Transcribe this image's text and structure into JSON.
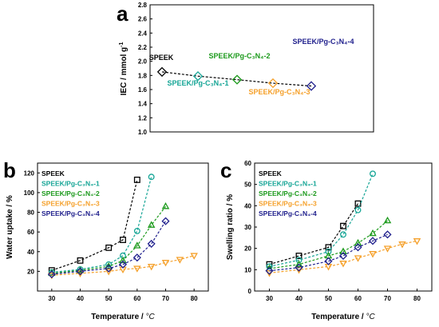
{
  "colors": {
    "s0": "#000000",
    "s1": "#16a596",
    "s2": "#1c9a1c",
    "s3": "#f5a02a",
    "s4": "#1e1e8c"
  },
  "chart_data": [
    {
      "type": "line",
      "panel_label": "a",
      "ylabel": "IEC / mmol g",
      "ylabel_sup": "-1",
      "ylim": [
        1.0,
        2.8
      ],
      "yticks": [
        "1.0",
        "1.2",
        "1.4",
        "1.6",
        "1.8",
        "2.0",
        "2.2",
        "2.4",
        "2.6",
        "2.8"
      ],
      "grid": false,
      "marker": "diamond",
      "categories": [
        "SPEEK",
        "SPEEK/Pg-C₃N₄-1",
        "SPEEK/Pg-C₃N₄-2",
        "SPEEK/Pg-C₃N₄-3",
        "SPEEK/Pg-C₃N₄-4"
      ],
      "values": [
        1.85,
        1.79,
        1.74,
        1.69,
        1.65
      ],
      "point_labels": [
        "SPEEK",
        "SPEEK/Pg-C₃N₄-1",
        "SPEEK/Pg-C₃N₄-2",
        "SPEEK/Pg-C₃N₄-3",
        "SPEEK/Pg-C₃N₄-4"
      ]
    },
    {
      "type": "line",
      "panel_label": "b",
      "xlabel": "Temperature / ",
      "xlabel_unit": "°C",
      "ylabel": "Water uptake / %",
      "xlim": [
        25,
        85
      ],
      "ylim": [
        0,
        130
      ],
      "xticks": [
        30,
        40,
        50,
        60,
        70,
        80
      ],
      "yticks": [
        20,
        40,
        60,
        80,
        100,
        120
      ],
      "grid": false,
      "legend_position": "top-left",
      "series": [
        {
          "name": "SPEEK",
          "marker": "square",
          "x": [
            30,
            40,
            50,
            55,
            60
          ],
          "y": [
            21,
            31,
            44,
            52,
            113
          ]
        },
        {
          "name": "SPEEK/Pg-C₃N₄-1",
          "marker": "circle",
          "x": [
            30,
            40,
            50,
            55,
            60,
            65
          ],
          "y": [
            19,
            22,
            27,
            36,
            61,
            116
          ]
        },
        {
          "name": "SPEEK/Pg-C₃N₄-2",
          "marker": "triangle-up",
          "x": [
            30,
            40,
            50,
            55,
            60,
            65,
            70
          ],
          "y": [
            18,
            21,
            25,
            31,
            46,
            67,
            86
          ]
        },
        {
          "name": "SPEEK/Pg-C₃N₄-3",
          "marker": "triangle-down",
          "x": [
            30,
            40,
            50,
            55,
            60,
            65,
            70,
            75,
            80
          ],
          "y": [
            16,
            18,
            20,
            22,
            23,
            25,
            29,
            32,
            36
          ]
        },
        {
          "name": "SPEEK/Pg-C₃N₄-4",
          "marker": "diamond",
          "x": [
            30,
            40,
            50,
            55,
            60,
            65,
            70
          ],
          "y": [
            17,
            20,
            23,
            27,
            34,
            48,
            71
          ]
        }
      ]
    },
    {
      "type": "line",
      "panel_label": "c",
      "xlabel": "Temperature / ",
      "xlabel_unit": "°C",
      "ylabel": "Swelling ratio / %",
      "xlim": [
        25,
        85
      ],
      "ylim": [
        0,
        60
      ],
      "xticks": [
        30,
        40,
        50,
        60,
        70,
        80
      ],
      "yticks": [
        0,
        10,
        20,
        30,
        40,
        50,
        60
      ],
      "grid": false,
      "legend_position": "top-left",
      "series": [
        {
          "name": "SPEEK",
          "marker": "square",
          "x": [
            30,
            40,
            50,
            55,
            60
          ],
          "y": [
            12.5,
            16.5,
            20.5,
            30.5,
            41
          ]
        },
        {
          "name": "SPEEK/Pg-C₃N₄-1",
          "marker": "circle",
          "x": [
            30,
            40,
            50,
            55,
            60,
            65
          ],
          "y": [
            11.5,
            14.5,
            18.5,
            26.5,
            38,
            55
          ]
        },
        {
          "name": "SPEEK/Pg-C₃N₄-2",
          "marker": "triangle-up",
          "x": [
            30,
            40,
            50,
            55,
            60,
            65,
            70
          ],
          "y": [
            10.5,
            12.5,
            16.5,
            18.5,
            22.5,
            27,
            33
          ]
        },
        {
          "name": "SPEEK/Pg-C₃N₄-3",
          "marker": "triangle-down",
          "x": [
            30,
            40,
            50,
            55,
            60,
            65,
            70,
            75,
            80
          ],
          "y": [
            8.5,
            10,
            11.5,
            13,
            15.5,
            17.5,
            20,
            22,
            23.5
          ]
        },
        {
          "name": "SPEEK/Pg-C₃N₄-4",
          "marker": "diamond",
          "x": [
            30,
            40,
            50,
            55,
            60,
            65,
            70
          ],
          "y": [
            9.5,
            11,
            14,
            16.5,
            20.5,
            23.5,
            26.5
          ]
        }
      ]
    }
  ]
}
